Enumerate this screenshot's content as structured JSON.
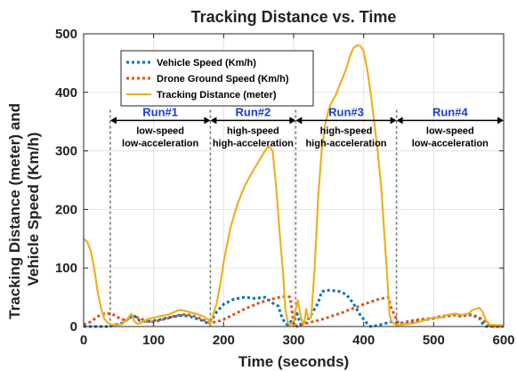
{
  "chart_data": {
    "type": "line",
    "title": "Tracking Distance vs. Time",
    "xlabel": "Time (seconds)",
    "ylabel": "Tracking Distance (meter) and Vehicle Speed (Km/h)",
    "ylabel_lines": [
      "Tracking Distance (meter) and",
      "Vehicle Speed (Km/h)"
    ],
    "xlim": [
      0,
      600
    ],
    "ylim": [
      0,
      500
    ],
    "xticks": [
      0,
      100,
      200,
      300,
      400,
      500,
      600
    ],
    "yticks": [
      0,
      100,
      200,
      300,
      400,
      500
    ],
    "grid": true,
    "legend_position": "top-left",
    "series": [
      {
        "name": "Vehicle Speed (Km/h)",
        "color": "#0072BD",
        "style": "dotted",
        "x": [
          0,
          38,
          45,
          55,
          65,
          72,
          80,
          90,
          100,
          110,
          120,
          130,
          140,
          150,
          160,
          170,
          178,
          182,
          190,
          200,
          215,
          230,
          245,
          260,
          270,
          278,
          282,
          288,
          292,
          300,
          305,
          310,
          318,
          325,
          335,
          340,
          350,
          365,
          375,
          385,
          395,
          405,
          410,
          420,
          430,
          440,
          450,
          460,
          470,
          480,
          490,
          500,
          510,
          520,
          530,
          540,
          550,
          560,
          565,
          570,
          575,
          580,
          600
        ],
        "y": [
          0,
          0,
          3,
          6,
          14,
          19,
          10,
          8,
          10,
          12,
          15,
          17,
          19,
          18,
          14,
          10,
          5,
          10,
          25,
          38,
          47,
          50,
          48,
          50,
          40,
          35,
          20,
          5,
          3,
          14,
          22,
          3,
          8,
          20,
          40,
          60,
          62,
          60,
          55,
          40,
          20,
          5,
          0,
          2,
          5,
          8,
          5,
          5,
          8,
          10,
          12,
          14,
          16,
          18,
          20,
          18,
          20,
          17,
          15,
          5,
          0,
          0,
          0
        ]
      },
      {
        "name": "Drone Ground Speed (Km/h)",
        "color": "#D95319",
        "style": "dotted",
        "x": [
          0,
          10,
          20,
          30,
          40,
          50,
          60,
          70,
          80,
          90,
          100,
          110,
          120,
          130,
          140,
          150,
          160,
          170,
          180,
          190,
          200,
          210,
          220,
          230,
          240,
          250,
          260,
          270,
          280,
          290,
          295,
          300,
          305,
          310,
          320,
          330,
          340,
          350,
          360,
          370,
          380,
          390,
          400,
          410,
          420,
          430,
          435,
          440,
          450,
          460,
          470,
          480,
          490,
          500,
          510,
          520,
          530,
          540,
          550,
          560,
          570,
          575,
          580,
          600
        ],
        "y": [
          3,
          8,
          17,
          22,
          22,
          15,
          10,
          18,
          14,
          9,
          8,
          11,
          14,
          18,
          20,
          20,
          17,
          12,
          6,
          8,
          12,
          18,
          24,
          30,
          35,
          40,
          44,
          47,
          50,
          52,
          50,
          5,
          0,
          3,
          6,
          9,
          12,
          16,
          20,
          24,
          29,
          33,
          38,
          42,
          46,
          49,
          50,
          30,
          5,
          8,
          10,
          12,
          13,
          15,
          17,
          19,
          20,
          17,
          21,
          18,
          12,
          5,
          0,
          0
        ]
      },
      {
        "name": "Tracking Distance (meter)",
        "color": "#EDB120",
        "style": "solid",
        "x": [
          0,
          5,
          10,
          15,
          20,
          25,
          30,
          35,
          40,
          45,
          55,
          62,
          68,
          72,
          76,
          80,
          90,
          100,
          110,
          120,
          130,
          135,
          140,
          150,
          160,
          170,
          178,
          181,
          185,
          190,
          195,
          200,
          210,
          220,
          230,
          240,
          250,
          258,
          262,
          266,
          270,
          275,
          280,
          285,
          288,
          292,
          296,
          300,
          303,
          306,
          309,
          312,
          315,
          318,
          321,
          325,
          330,
          335,
          340,
          345,
          350,
          355,
          360,
          365,
          370,
          375,
          380,
          385,
          390,
          395,
          400,
          405,
          410,
          415,
          420,
          425,
          430,
          434,
          437,
          440,
          443,
          446,
          449,
          452,
          460,
          470,
          480,
          490,
          500,
          510,
          520,
          530,
          540,
          550,
          555,
          560,
          565,
          570,
          575,
          580,
          600
        ],
        "y": [
          150,
          145,
          130,
          100,
          60,
          30,
          12,
          6,
          3,
          3,
          4,
          12,
          22,
          10,
          5,
          5,
          12,
          15,
          18,
          20,
          25,
          28,
          28,
          25,
          22,
          18,
          12,
          5,
          20,
          40,
          70,
          110,
          170,
          210,
          240,
          262,
          282,
          298,
          305,
          307,
          300,
          240,
          160,
          90,
          30,
          5,
          3,
          10,
          30,
          45,
          25,
          10,
          5,
          30,
          15,
          15,
          100,
          220,
          300,
          345,
          370,
          385,
          395,
          410,
          425,
          440,
          460,
          475,
          480,
          480,
          470,
          440,
          400,
          350,
          300,
          240,
          150,
          80,
          20,
          8,
          5,
          3,
          3,
          3,
          4,
          5,
          8,
          12,
          15,
          15,
          20,
          22,
          20,
          22,
          28,
          30,
          32,
          25,
          10,
          3,
          2
        ]
      }
    ],
    "run_boundaries": [
      38,
      181,
      303,
      447
    ],
    "runs": [
      {
        "label": "Run#1",
        "desc1": "low-speed",
        "desc2": "low-acceleration",
        "start": 38,
        "end": 181
      },
      {
        "label": "Run#2",
        "desc1": "high-speed",
        "desc2": "high-acceleration",
        "start": 181,
        "end": 303
      },
      {
        "label": "Run#3",
        "desc1": "high-speed",
        "desc2": "high-acceleration",
        "start": 303,
        "end": 447
      },
      {
        "label": "Run#4",
        "desc1": "low-speed",
        "desc2": "low-acceleration",
        "start": 447,
        "end": 600
      }
    ],
    "run_label_color": "#1a3dd6"
  }
}
